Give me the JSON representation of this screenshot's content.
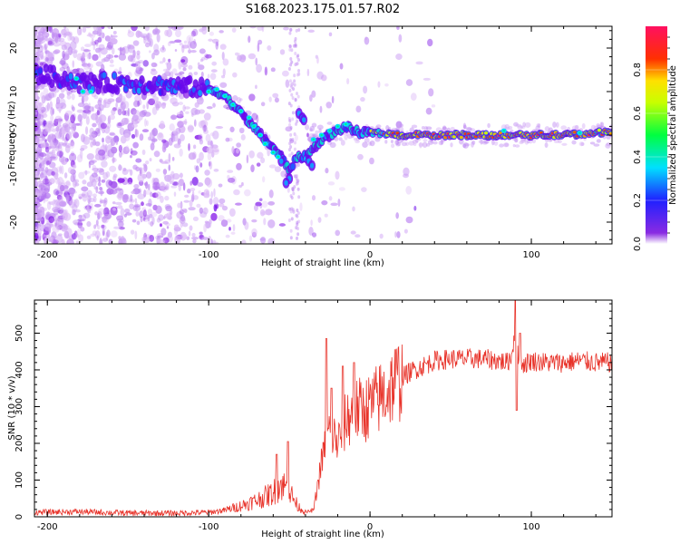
{
  "figure": {
    "title": "S168.2023.175.01.57.R02"
  },
  "chart_data": [
    {
      "type": "heatmap",
      "title": "",
      "xlabel": "Height of straight line (km)",
      "ylabel": "Frequency (Hz)",
      "xlim": [
        -208,
        150
      ],
      "ylim": [
        -25,
        25
      ],
      "xticks": [
        -200,
        -100,
        0,
        100
      ],
      "yticks": [
        -20,
        -10,
        0,
        10,
        20
      ],
      "grid": false,
      "colormap": "rainbow (purple-blue-cyan-green-yellow-red-magenta)",
      "colorbar": {
        "label": "Normalized spectral amplitude",
        "range": [
          0,
          1
        ],
        "ticks": [
          "0.0",
          "0.2",
          "0.4",
          "0.6",
          "0.8"
        ],
        "tick_values": [
          0.0,
          0.2,
          0.4,
          0.6,
          0.8
        ]
      },
      "ridge": {
        "x": [
          -205,
          -190,
          -180,
          -165,
          -150,
          -130,
          -110,
          -100,
          -95,
          -90,
          -85,
          -80,
          -75,
          -70,
          -65,
          -60,
          -55,
          -50,
          -45,
          -40,
          -35,
          -30,
          -25,
          -20,
          -15,
          -10,
          -5,
          0,
          10,
          20,
          40,
          60,
          80,
          100,
          120,
          140,
          150
        ],
        "y": [
          14,
          13,
          12,
          12,
          12,
          11.5,
          11,
          10.5,
          10,
          9,
          7,
          5,
          3,
          1,
          -1,
          -3,
          -5,
          -8,
          -5,
          -5,
          -3,
          -1,
          0,
          1,
          2,
          1,
          0.5,
          0.5,
          0.3,
          0,
          0,
          0,
          0,
          0,
          0,
          0.5,
          1
        ]
      }
    },
    {
      "type": "line",
      "title": "",
      "xlabel": "Height of straight line (km)",
      "ylabel": "SNR (10 * v/v)",
      "xlim": [
        -208,
        150
      ],
      "ylim": [
        0,
        590
      ],
      "xticks": [
        -200,
        -100,
        0,
        100
      ],
      "yticks": [
        0,
        100,
        200,
        300,
        400,
        500
      ],
      "grid": false,
      "color": "#e8332a",
      "envelope": {
        "x": [
          -208,
          -180,
          -150,
          -120,
          -100,
          -90,
          -80,
          -70,
          -60,
          -55,
          -50,
          -45,
          -40,
          -35,
          -30,
          -25,
          -20,
          -15,
          -10,
          -5,
          0,
          5,
          10,
          15,
          20,
          25,
          30,
          40,
          50,
          60,
          70,
          80,
          85,
          88,
          90,
          92,
          95,
          100,
          110,
          120,
          130,
          140,
          150
        ],
        "y": [
          12,
          14,
          10,
          10,
          12,
          18,
          30,
          45,
          65,
          90,
          70,
          30,
          12,
          18,
          150,
          240,
          200,
          260,
          290,
          290,
          300,
          320,
          340,
          365,
          380,
          395,
          405,
          425,
          430,
          430,
          430,
          425,
          420,
          440,
          520,
          420,
          415,
          425,
          420,
          420,
          425,
          420,
          420
        ]
      },
      "spikes": [
        {
          "x": -58,
          "y": 170
        },
        {
          "x": -51,
          "y": 205
        },
        {
          "x": -27,
          "y": 485
        },
        {
          "x": -24,
          "y": 350
        },
        {
          "x": -17,
          "y": 410
        },
        {
          "x": -10,
          "y": 420
        },
        {
          "x": 90,
          "y": 590
        },
        {
          "x": 93,
          "y": 500
        },
        {
          "x": 91,
          "y": 290
        }
      ]
    }
  ]
}
